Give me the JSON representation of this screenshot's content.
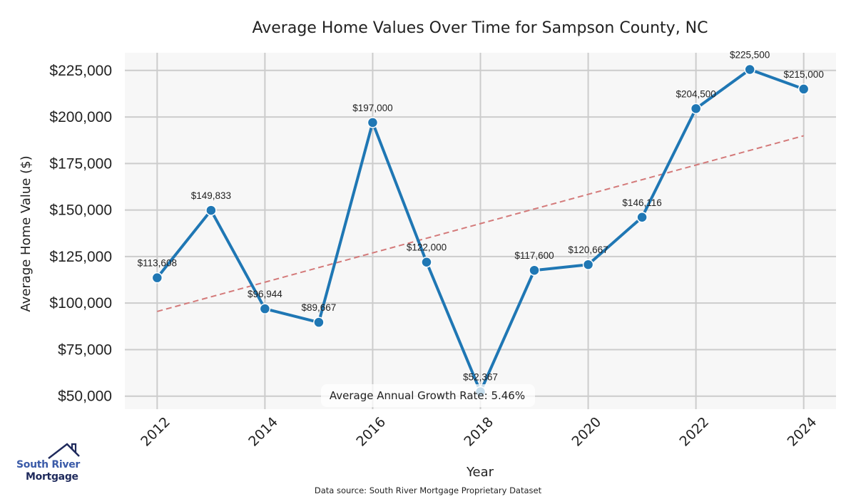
{
  "chart_data": {
    "type": "line",
    "title": "Average Home Values Over Time for Sampson County, NC",
    "xlabel": "Year",
    "ylabel": "Average Home Value ($)",
    "x": [
      2012,
      2013,
      2014,
      2015,
      2016,
      2017,
      2018,
      2019,
      2020,
      2021,
      2022,
      2023,
      2024
    ],
    "series": [
      {
        "name": "Average Home Value",
        "color": "#1f77b4",
        "values": [
          113608,
          149833,
          96944,
          89667,
          197000,
          122000,
          52367,
          117600,
          120667,
          146116,
          204500,
          225500,
          215000
        ],
        "labels": [
          "$113,608",
          "$149,833",
          "$96,944",
          "$89,667",
          "$197,000",
          "$122,000",
          "$52,367",
          "$117,600",
          "$120,667",
          "$146,116",
          "$204,500",
          "$225,500",
          "$215,000"
        ]
      }
    ],
    "trendline": {
      "name": "Trend",
      "color": "#d47a7a",
      "style": "dashed",
      "x": [
        2012,
        2024
      ],
      "values": [
        95500,
        189900
      ]
    },
    "xticks": [
      2012,
      2014,
      2016,
      2018,
      2020,
      2022,
      2024
    ],
    "yticks": [
      50000,
      75000,
      100000,
      125000,
      150000,
      175000,
      200000,
      225000
    ],
    "ytick_labels": [
      "$50,000",
      "$75,000",
      "$100,000",
      "$125,000",
      "$150,000",
      "$175,000",
      "$200,000",
      "$225,000"
    ],
    "xlim": [
      2011.4,
      2024.6
    ],
    "ylim": [
      43000,
      234500
    ],
    "grid": true,
    "background": "#f7f7f7",
    "annotation": "Average Annual Growth Rate: 5.46%",
    "source_note": "Data source: South River Mortgage Proprietary Dataset"
  },
  "branding": {
    "logo_line1": "South River",
    "logo_line2": "Mortgage",
    "primary_color": "#3a5aa8",
    "dark_color": "#1f2a5c"
  }
}
